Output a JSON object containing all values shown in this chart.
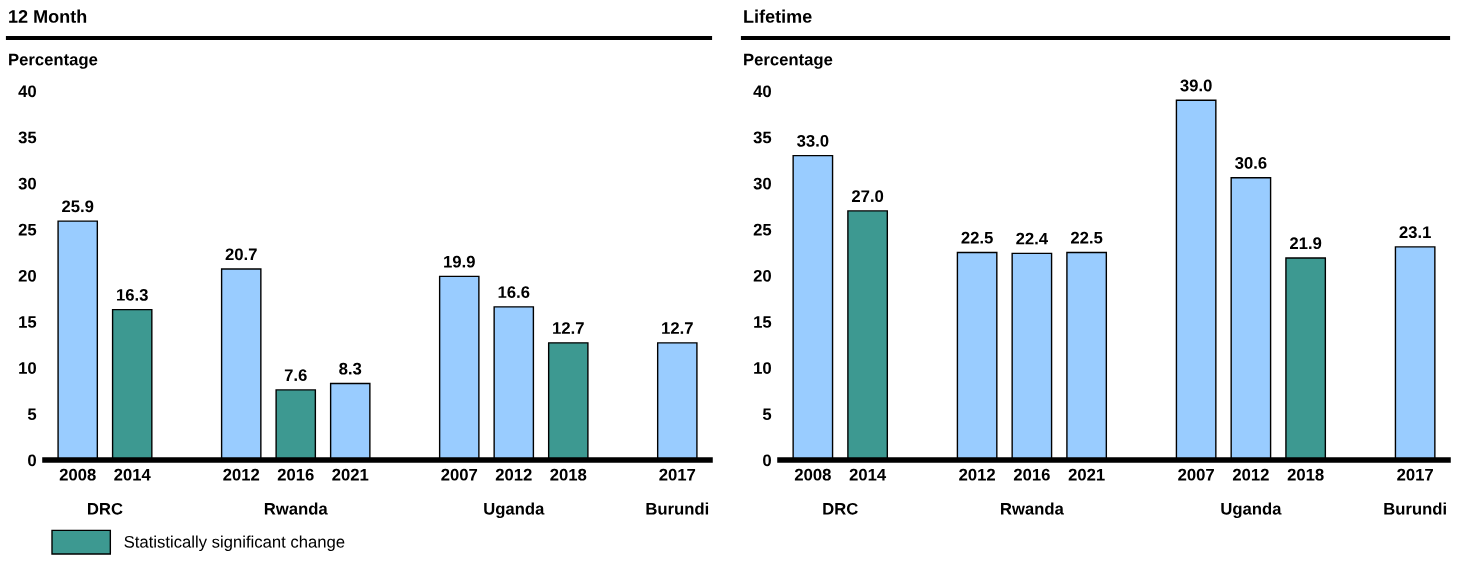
{
  "chart_data": [
    {
      "type": "bar",
      "title": "12 Month",
      "ylabel": "Percentage",
      "categories": [
        "2008",
        "2014",
        null,
        "2012",
        "2016",
        "2021",
        null,
        "2007",
        "2012",
        "2018",
        null,
        "2017"
      ],
      "ylim": [
        0,
        40
      ],
      "yticks": [
        0,
        5,
        10,
        15,
        20,
        25,
        30,
        35,
        40
      ],
      "grid": false,
      "legend": "bottom left",
      "annotations": [
        "DRC",
        "Rwanda",
        "Uganda",
        "Burundi"
      ],
      "series": [
        {
          "color": "#99ccff",
          "values": [
            25.9,
            null,
            null,
            20.7,
            null,
            8.3,
            null,
            19.9,
            16.6,
            null,
            null,
            12.7
          ],
          "value_labels": [
            "25.9",
            null,
            null,
            "20.7",
            null,
            "8.3",
            null,
            "19.9",
            "16.6",
            null,
            null,
            "12.7"
          ]
        },
        {
          "name": "Statistically significant change",
          "color": "#3d9991",
          "values": [
            null,
            16.3,
            null,
            null,
            7.6,
            null,
            null,
            null,
            null,
            12.7,
            null,
            null
          ],
          "value_labels": [
            null,
            "16.3",
            null,
            null,
            "7.6",
            null,
            null,
            null,
            null,
            "12.7",
            null,
            null
          ]
        }
      ]
    },
    {
      "type": "bar",
      "title": "Lifetime",
      "ylabel": "Percentage",
      "categories": [
        "2008",
        "2014",
        null,
        "2012",
        "2016",
        "2021",
        null,
        "2007",
        "2012",
        "2018",
        null,
        "2017"
      ],
      "ylim": [
        0,
        40
      ],
      "yticks": [
        0,
        5,
        10,
        15,
        20,
        25,
        30,
        35,
        40
      ],
      "grid": false,
      "annotations": [
        "DRC",
        "Rwanda",
        "Uganda",
        "Burundi"
      ],
      "series": [
        {
          "color": "#99ccff",
          "values": [
            33.0,
            null,
            null,
            22.5,
            22.4,
            22.5,
            null,
            39.0,
            30.6,
            null,
            null,
            23.1
          ],
          "value_labels": [
            "33.0",
            null,
            null,
            "22.5",
            "22.4",
            "22.5",
            null,
            "39.0",
            "30.6",
            null,
            null,
            "23.1"
          ]
        },
        {
          "color": "#3d9991",
          "values": [
            null,
            27.0,
            null,
            null,
            null,
            null,
            null,
            null,
            null,
            21.9,
            null,
            null
          ],
          "value_labels": [
            null,
            "27.0",
            null,
            null,
            null,
            null,
            null,
            null,
            null,
            "21.9",
            null,
            null
          ]
        }
      ]
    }
  ]
}
